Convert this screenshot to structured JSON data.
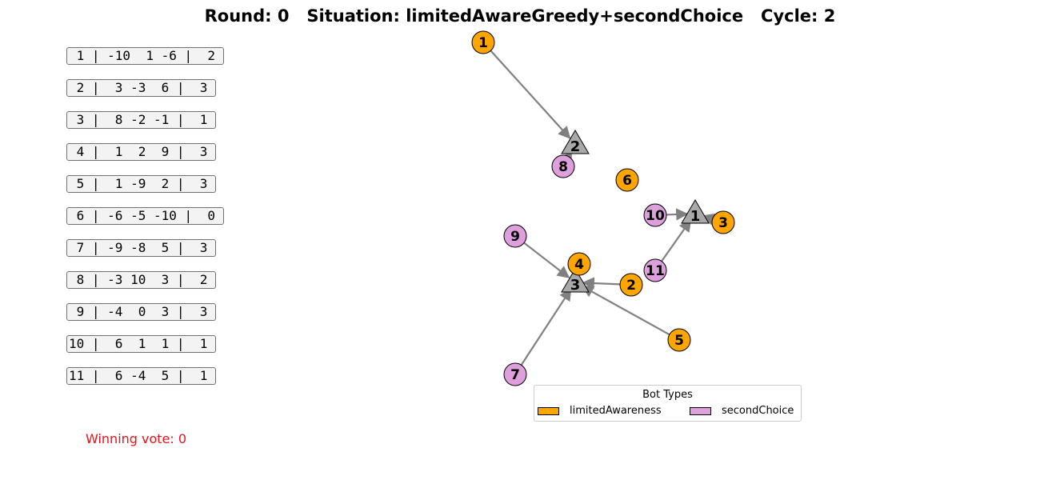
{
  "title": "Round: 0   Situation: limitedAwareGreedy+secondChoice   Cycle: 2",
  "bot_rows": [
    " 1 | -10  1 -6 |  2",
    " 2 |  3 -3  6 |  3",
    " 3 |  8 -2 -1 |  1",
    " 4 |  1  2  9 |  3",
    " 5 |  1 -9  2 |  3",
    " 6 | -6 -5 -10 |  0",
    " 7 | -9 -8  5 |  3",
    " 8 | -3 10  3 |  2",
    " 9 | -4  0  3 |  3",
    "10 |  6  1  1 |  1",
    "11 |  6 -4  5 |  1"
  ],
  "winning_vote": "Winning vote: 0",
  "legend": {
    "title": "Bot Types",
    "items": [
      {
        "label": "limitedAwareness",
        "color": "#ffa500"
      },
      {
        "label": "secondChoice",
        "color": "#dda0dd"
      }
    ]
  },
  "colors": {
    "limitedAwareness": "#ffa500",
    "secondChoice": "#dda0dd",
    "option": "#a9a9a9",
    "edge": "#808080",
    "winning_text": "#e8121b"
  },
  "options": [
    {
      "label": "1"
    },
    {
      "label": "2"
    },
    {
      "label": "3"
    }
  ],
  "bots": [
    {
      "label": "1",
      "type": "limitedAwareness",
      "target": "2"
    },
    {
      "label": "2",
      "type": "limitedAwareness",
      "target": "3"
    },
    {
      "label": "3",
      "type": "limitedAwareness",
      "target": "1"
    },
    {
      "label": "4",
      "type": "limitedAwareness",
      "target": "3"
    },
    {
      "label": "5",
      "type": "limitedAwareness",
      "target": "3"
    },
    {
      "label": "6",
      "type": "limitedAwareness",
      "target": null
    },
    {
      "label": "7",
      "type": "secondChoice",
      "target": "3"
    },
    {
      "label": "8",
      "type": "secondChoice",
      "target": "2"
    },
    {
      "label": "9",
      "type": "secondChoice",
      "target": "3"
    },
    {
      "label": "10",
      "type": "secondChoice",
      "target": "1"
    },
    {
      "label": "11",
      "type": "secondChoice",
      "target": "1"
    }
  ]
}
